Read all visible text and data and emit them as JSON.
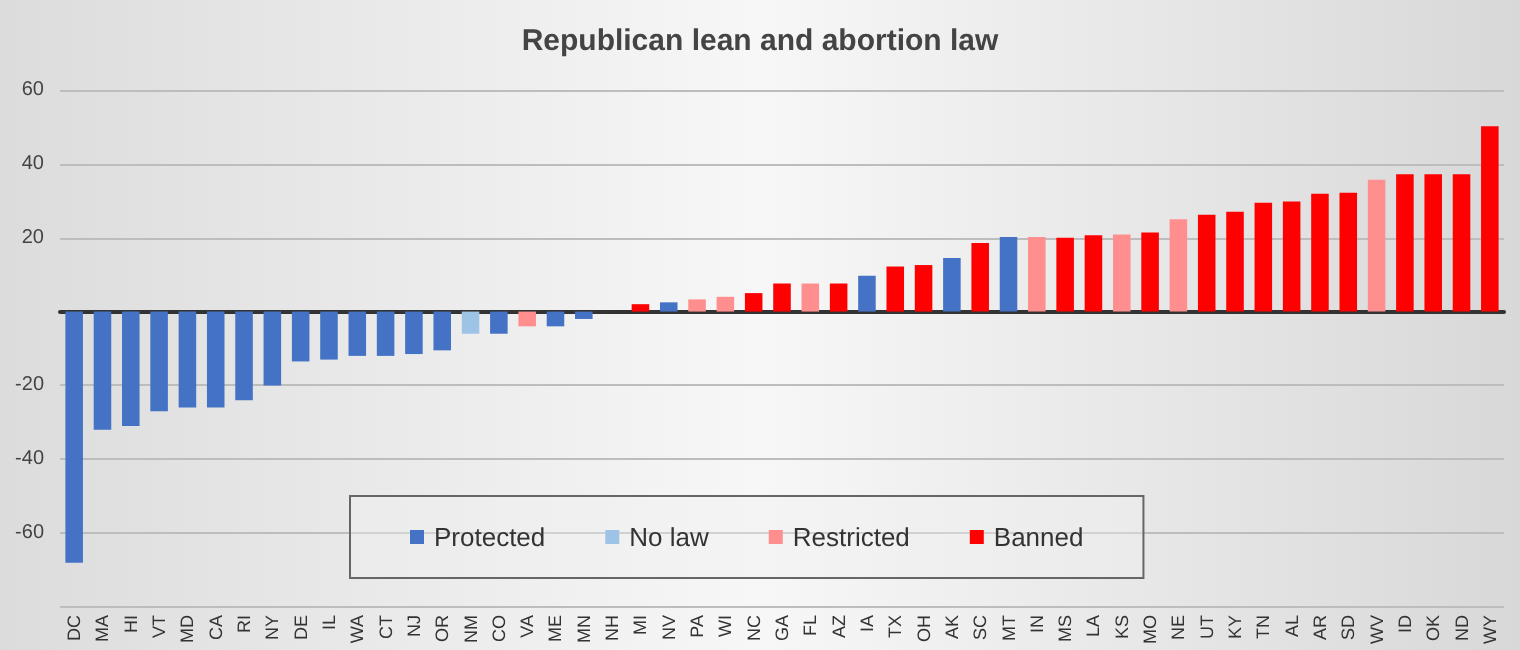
{
  "chart_data": {
    "type": "bar",
    "title": "Republican lean and abortion law",
    "categories": [
      "DC",
      "MA",
      "HI",
      "VT",
      "MD",
      "CA",
      "RI",
      "NY",
      "DE",
      "IL",
      "WA",
      "CT",
      "NJ",
      "OR",
      "NM",
      "CO",
      "VA",
      "ME",
      "MN",
      "NH",
      "MI",
      "NV",
      "PA",
      "WI",
      "NC",
      "GA",
      "FL",
      "AZ",
      "IA",
      "TX",
      "OH",
      "AK",
      "SC",
      "MT",
      "IN",
      "MS",
      "LA",
      "KS",
      "MO",
      "NE",
      "UT",
      "KY",
      "TN",
      "AL",
      "AR",
      "SD",
      "WV",
      "ID",
      "OK",
      "ND",
      "WY"
    ],
    "series": [
      {
        "name": "Protected",
        "color": "#4472c4",
        "values": [
          -68,
          -32,
          -31,
          -27,
          -26,
          -26,
          -24,
          -20,
          -13.5,
          -13,
          -12,
          -12,
          -11.5,
          -10.5,
          null,
          -6,
          null,
          -4,
          -2,
          null,
          null,
          2.5,
          null,
          null,
          null,
          null,
          null,
          null,
          9.7,
          null,
          null,
          14.5,
          null,
          20.2,
          null,
          null,
          null,
          null,
          null,
          null,
          null,
          null,
          null,
          null,
          null,
          null,
          null,
          null,
          null,
          null,
          null
        ]
      },
      {
        "name": "No law",
        "color": "#9dc3e6",
        "values": [
          null,
          null,
          null,
          null,
          null,
          null,
          null,
          null,
          null,
          null,
          null,
          null,
          null,
          null,
          -6,
          null,
          null,
          null,
          null,
          0,
          null,
          null,
          null,
          null,
          null,
          null,
          null,
          null,
          null,
          null,
          null,
          null,
          null,
          null,
          null,
          null,
          null,
          null,
          null,
          null,
          null,
          null,
          null,
          null,
          null,
          null,
          null,
          null,
          null,
          null,
          null
        ]
      },
      {
        "name": "Restricted",
        "color": "#ff8f8f",
        "values": [
          null,
          null,
          null,
          null,
          null,
          null,
          null,
          null,
          null,
          null,
          null,
          null,
          null,
          null,
          null,
          null,
          -4,
          null,
          null,
          null,
          null,
          null,
          3.3,
          4,
          null,
          null,
          7.6,
          null,
          null,
          null,
          null,
          null,
          null,
          null,
          20.2,
          null,
          null,
          20.9,
          null,
          25,
          null,
          null,
          null,
          null,
          null,
          null,
          35.7,
          null,
          null,
          null,
          null
        ]
      },
      {
        "name": "Banned",
        "color": "#ff0000",
        "values": [
          null,
          null,
          null,
          null,
          null,
          null,
          null,
          null,
          null,
          null,
          null,
          null,
          null,
          null,
          null,
          null,
          null,
          null,
          null,
          null,
          2,
          null,
          null,
          null,
          5,
          7.6,
          null,
          7.6,
          null,
          12.2,
          12.6,
          null,
          18.6,
          null,
          null,
          20,
          20.7,
          null,
          21.4,
          null,
          26.2,
          27,
          29.5,
          29.8,
          31.9,
          32.2,
          null,
          37.2,
          37.2,
          37.2,
          50.2
        ]
      }
    ],
    "stacked": true,
    "ylim": [
      -80,
      60
    ],
    "yticks": [
      {
        "value": -80,
        "label": null
      },
      -60,
      -40,
      -20,
      {
        "value": 0,
        "label": null
      },
      20,
      40,
      60
    ],
    "grid": "y",
    "legend": "bottom"
  }
}
